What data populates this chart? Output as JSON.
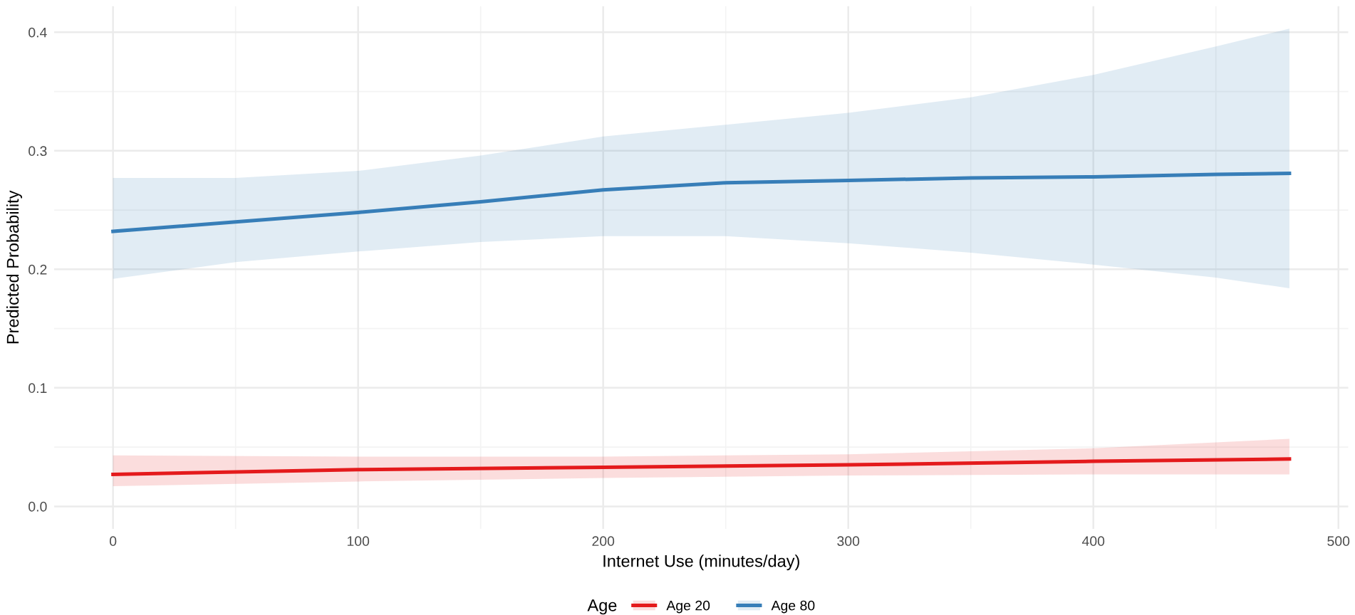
{
  "chart_data": {
    "type": "line",
    "xlabel": "Internet Use (minutes/day)",
    "ylabel": "Predicted Probability",
    "legend_title": "Age",
    "legend": "bottom",
    "grid": true,
    "xlim": [
      -24,
      504
    ],
    "xticks": [
      0,
      100,
      200,
      300,
      400,
      500
    ],
    "ylim": [
      -0.019,
      0.422
    ],
    "yticks": [
      {
        "value": 0,
        "label": "0.0"
      },
      0.1,
      0.2,
      0.3,
      0.4
    ],
    "series": [
      {
        "name": "Age 20",
        "color": "#e41a1c",
        "x": [
          0,
          100,
          200,
          300,
          400,
          480
        ],
        "values": [
          0.027,
          0.031,
          0.033,
          0.035,
          0.038,
          0.04
        ],
        "lower": [
          0.017,
          0.021,
          0.024,
          0.026,
          0.027,
          0.027
        ],
        "upper": [
          0.043,
          0.042,
          0.042,
          0.044,
          0.049,
          0.057
        ]
      },
      {
        "name": "Age 80",
        "color": "#377eb8",
        "x": [
          0,
          50,
          100,
          150,
          200,
          250,
          300,
          350,
          400,
          450,
          480
        ],
        "values": [
          0.232,
          0.24,
          0.248,
          0.257,
          0.267,
          0.273,
          0.275,
          0.277,
          0.278,
          0.28,
          0.281
        ],
        "lower": [
          0.192,
          0.206,
          0.215,
          0.223,
          0.228,
          0.228,
          0.222,
          0.214,
          0.204,
          0.193,
          0.184
        ],
        "upper": [
          0.277,
          0.277,
          0.283,
          0.296,
          0.312,
          0.322,
          0.332,
          0.345,
          0.364,
          0.388,
          0.403
        ]
      }
    ]
  }
}
